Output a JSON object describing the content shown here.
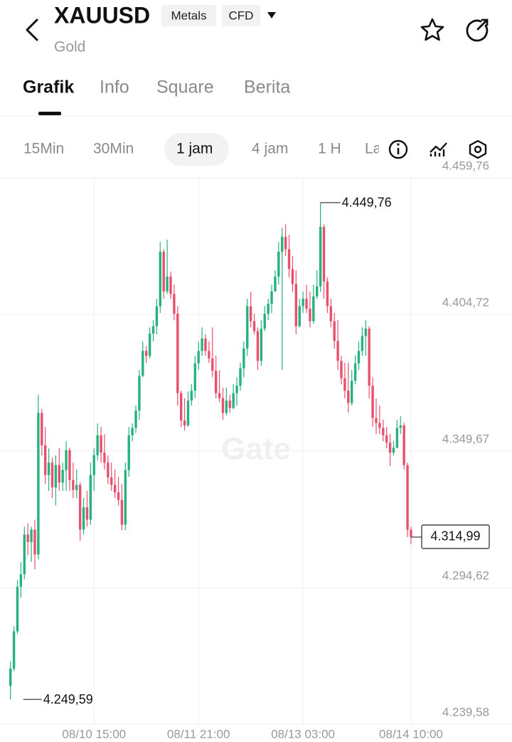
{
  "header": {
    "symbol": "XAUUSD",
    "badges": [
      "Metals",
      "CFD"
    ],
    "name": "Gold"
  },
  "tabs": [
    "Grafik",
    "Info",
    "Square",
    "Berita"
  ],
  "intervals": [
    "15Min",
    "30Min",
    "1 jam",
    "4 jam",
    "1 H",
    "La"
  ],
  "chart_data": {
    "type": "candlestick",
    "watermark": "Gate",
    "colors": {
      "up": "#25b27e",
      "down": "#e8506e"
    },
    "xlim": [
      -3,
      144
    ],
    "xticks": [
      {
        "value": 24,
        "label": "08/10 15:00"
      },
      {
        "value": 54,
        "label": "08/11 21:00"
      },
      {
        "value": 84,
        "label": "08/13 03:00"
      },
      {
        "value": 115,
        "label": "08/14 10:00"
      }
    ],
    "ylim": [
      4239.58,
      4459.76
    ],
    "yticks": [
      {
        "value": 4459.76,
        "label": "4.459,76"
      },
      {
        "value": 4404.72,
        "label": "4.404,72"
      },
      {
        "value": 4349.67,
        "label": "4.349,67"
      },
      {
        "value": 4294.62,
        "label": "4.294,62"
      },
      {
        "value": 4239.58,
        "label": "4.239,58"
      }
    ],
    "grid": true,
    "open": [
      4255,
      4262,
      4277,
      4295,
      4300,
      4316,
      4313,
      4318,
      4308,
      4365,
      4352,
      4340,
      4345,
      4335,
      4344,
      4337,
      4342,
      4350,
      4338,
      4334,
      4336,
      4318,
      4327,
      4322,
      4340,
      4348,
      4356,
      4349,
      4345,
      4339,
      4336,
      4333,
      4330,
      4320,
      4342,
      4356,
      4359,
      4366,
      4380,
      4390,
      4388,
      4397,
      4400,
      4408,
      4430,
      4414,
      4420,
      4413,
      4405,
      4373,
      4362,
      4360,
      4370,
      4374,
      4385,
      4390,
      4395,
      4390,
      4387,
      4382,
      4373,
      4371,
      4365,
      4370,
      4367,
      4373,
      4376,
      4383,
      4391,
      4408,
      4402,
      4398,
      4386,
      4399,
      4405,
      4409,
      4414,
      4420,
      4430,
      4436,
      4431,
      4423,
      4417,
      4400,
      4408,
      4411,
      4407,
      4402,
      4412,
      4416,
      4440,
      4418,
      4408,
      4402,
      4394,
      4386,
      4379,
      4374,
      4369,
      4378,
      4385,
      4390,
      4396,
      4399,
      4376,
      4363,
      4361,
      4359,
      4356,
      4353,
      4349,
      4351,
      4359,
      4360,
      4344,
      4318
    ],
    "high": [
      4264.8,
      4279.1,
      4297.7,
      4304.9,
      4319.2,
      4320.5,
      4319.2,
      4322,
      4372.3,
      4366.6,
      4359.4,
      4350.8,
      4347,
      4347.9,
      4350.8,
      4345,
      4353.6,
      4351,
      4345,
      4342.2,
      4337,
      4330.7,
      4333.6,
      4345,
      4350.8,
      4360.8,
      4359.4,
      4356.5,
      4347.9,
      4345,
      4342.2,
      4339.3,
      4336.4,
      4345,
      4359.4,
      4360.8,
      4368,
      4382.3,
      4393.8,
      4392,
      4399.5,
      4402.4,
      4411,
      4433.9,
      4431,
      4434.8,
      4422,
      4416.7,
      4408,
      4374,
      4370.9,
      4373.7,
      4376.6,
      4388.1,
      4393.8,
      4399.5,
      4396.7,
      4393.8,
      4399.5,
      4388.1,
      4382.3,
      4375.2,
      4375.2,
      4372.3,
      4376.6,
      4379.4,
      4385.2,
      4393.8,
      4411,
      4413.9,
      4405,
      4399.5,
      4402.4,
      4408.1,
      4411,
      4416.7,
      4422.5,
      4433.9,
      4439.7,
      4441.1,
      4436.8,
      4428.2,
      4422.5,
      4411,
      4413.9,
      4416.7,
      4413.9,
      4416.7,
      4422.5,
      4449.76,
      4441,
      4419.6,
      4411,
      4405.3,
      4402.4,
      4388.1,
      4385.2,
      4385.2,
      4382.3,
      4388.1,
      4393.8,
      4399.5,
      4402.4,
      4400,
      4379.4,
      4370.9,
      4368,
      4362.3,
      4359.4,
      4356.5,
      4353.6,
      4362.3,
      4363.7,
      4361,
      4345,
      4319.2
    ],
    "low": [
      4249.59,
      4261,
      4276,
      4290.6,
      4298,
      4307.8,
      4305,
      4302,
      4306,
      4347.9,
      4336.4,
      4333.6,
      4330.7,
      4327.8,
      4333.6,
      4333.6,
      4333.6,
      4333.6,
      4330.7,
      4330.7,
      4313.5,
      4316,
      4319.2,
      4320,
      4333.6,
      4346,
      4345,
      4342.2,
      4336.4,
      4333.6,
      4330.7,
      4327.8,
      4317.8,
      4317.8,
      4339.3,
      4353.6,
      4357,
      4362.3,
      4379.4,
      4385.2,
      4387,
      4393.8,
      4396.7,
      4405.3,
      4411,
      4413,
      4411,
      4402.4,
      4368,
      4359.4,
      4357.9,
      4359.4,
      4368,
      4371,
      4382.3,
      4388.1,
      4388.1,
      4385.2,
      4379.4,
      4370.9,
      4369.4,
      4362.3,
      4364,
      4365.1,
      4366.6,
      4368,
      4374,
      4379.4,
      4388.1,
      4399.5,
      4396.7,
      4382.3,
      4384,
      4398,
      4402.4,
      4405.3,
      4413.9,
      4416.7,
      4382.3,
      4428.2,
      4419.6,
      4413.9,
      4396.7,
      4399.5,
      4405.3,
      4405.3,
      4399.5,
      4401,
      4411,
      4413.9,
      4411,
      4405.3,
      4399.5,
      4390.9,
      4382.3,
      4376.6,
      4370.9,
      4365.1,
      4368,
      4376.6,
      4382.3,
      4388.1,
      4388.1,
      4370.9,
      4359.4,
      4356.5,
      4356.5,
      4353.6,
      4350.8,
      4343.6,
      4347.9,
      4350.8,
      4356.5,
      4342.2,
      4315,
      4312.1
    ],
    "close": [
      4262,
      4277,
      4295,
      4300,
      4316,
      4313,
      4318,
      4308,
      4365,
      4352,
      4340,
      4345,
      4335,
      4344,
      4337,
      4342,
      4350,
      4338,
      4334,
      4336,
      4318,
      4327,
      4322,
      4340,
      4348,
      4356,
      4349,
      4345,
      4339,
      4336,
      4333,
      4330,
      4320,
      4342,
      4356,
      4359,
      4366,
      4380,
      4390,
      4388,
      4397,
      4400,
      4408,
      4430,
      4414,
      4420,
      4413,
      4405,
      4373,
      4362,
      4360,
      4370,
      4374,
      4385,
      4390,
      4395,
      4390,
      4387,
      4382,
      4373,
      4371,
      4365,
      4370,
      4367,
      4373,
      4376,
      4383,
      4391,
      4408,
      4402,
      4398,
      4386,
      4399,
      4405,
      4409,
      4414,
      4420,
      4430,
      4436,
      4431,
      4423,
      4417,
      4400,
      4408,
      4411,
      4407,
      4402,
      4412,
      4416,
      4440,
      4418,
      4408,
      4402,
      4394,
      4386,
      4379,
      4374,
      4369,
      4378,
      4385,
      4390,
      4396,
      4399,
      4376,
      4363,
      4361,
      4359,
      4356,
      4353,
      4349,
      4351,
      4359,
      4360,
      4344,
      4318,
      4314.99
    ],
    "max_label": {
      "value": 4449.76,
      "label": "4.449,76"
    },
    "min_label": {
      "value": 4249.59,
      "label": "4.249,59"
    },
    "last_label": {
      "value": 4314.99,
      "label": "4.314,99"
    }
  }
}
